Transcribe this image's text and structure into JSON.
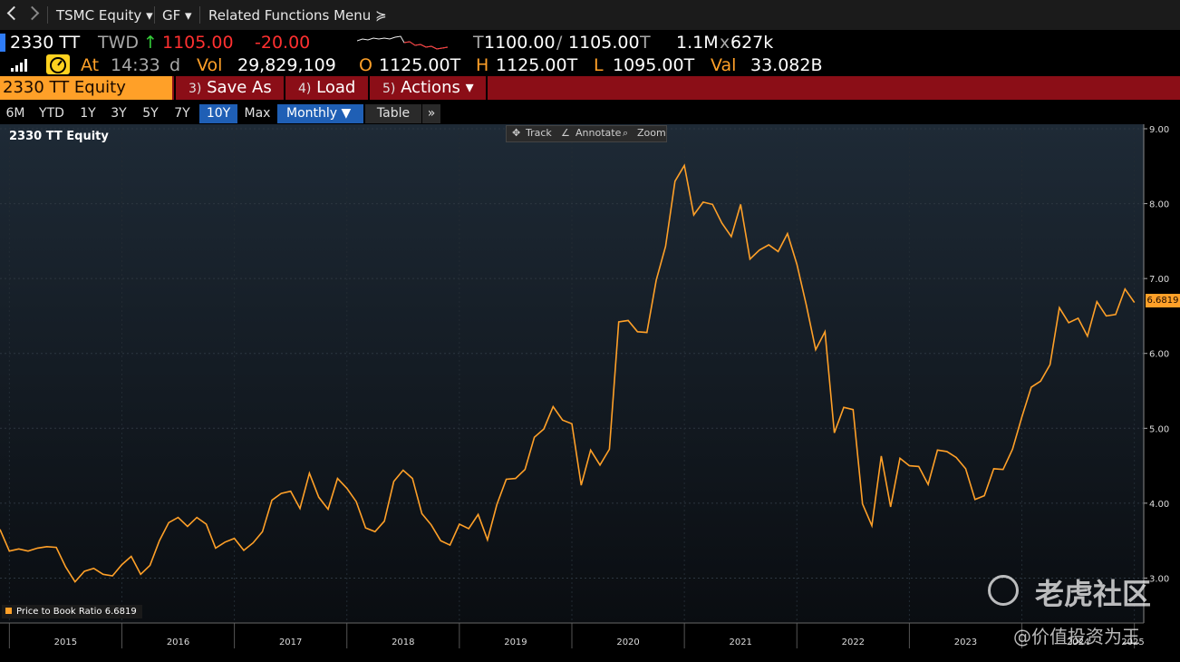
{
  "nav": {
    "back_icon": "chevron-left-icon",
    "forward_icon": "chevron-right-icon",
    "security": "TSMC Equity ▾",
    "function": "GF ▾",
    "related": "Related Functions Menu ≽"
  },
  "quote": {
    "ticker": "2330 TT",
    "currency": "TWD",
    "arrow": "↑",
    "last": "1105.00",
    "change": "-20.00",
    "bid_prefix": "T",
    "bid": "1100.00",
    "ask": "1105.00",
    "ask_suffix": "T",
    "size_bid": "1.1M",
    "size_sep": "x",
    "size_ask": "627k",
    "at_label": "At",
    "time": "14:33",
    "time_flag": "d",
    "vol_label": "Vol",
    "volume": "29,829,109",
    "open_label": "O",
    "open": "1125.00T",
    "high_label": "H",
    "high": "1125.00T",
    "low_label": "L",
    "low": "1095.00T",
    "val_label": "Val",
    "value": "33.082B"
  },
  "functions": {
    "ticker_field": "2330 TT Equity",
    "save_num": "3)",
    "save": "Save As",
    "load_num": "4)",
    "load": "Load",
    "actions_num": "5)",
    "actions": "Actions ▾"
  },
  "ranges": [
    "6M",
    "YTD",
    "1Y",
    "3Y",
    "5Y",
    "7Y",
    "10Y",
    "Max"
  ],
  "range_selected": "10Y",
  "frequency": "Monthly ▼",
  "table_label": "Table",
  "more_label": "»",
  "chart_toolbar": {
    "track": "Track",
    "annotate": "Annotate",
    "zoom": "Zoom"
  },
  "chart_title": "2330 TT Equity",
  "legend_label": "Price to Book Ratio 6.6819",
  "last_value": "6.6819",
  "watermark": {
    "brand": "老虎社区",
    "handle": "@价值投资为王"
  },
  "colors": {
    "line": "#ffa028",
    "accent": "#ffa028",
    "function_bar": "#8b0e17",
    "selected": "#1f5fb5"
  },
  "chart_data": {
    "type": "line",
    "title": "2330 TT Equity",
    "series": [
      {
        "name": "Price to Book Ratio",
        "values": [
          3.65,
          3.36,
          3.39,
          3.36,
          3.4,
          3.42,
          3.41,
          3.15,
          2.95,
          3.09,
          3.13,
          3.05,
          3.03,
          3.18,
          3.29,
          3.05,
          3.17,
          3.5,
          3.74,
          3.81,
          3.69,
          3.81,
          3.72,
          3.4,
          3.48,
          3.53,
          3.37,
          3.47,
          3.62,
          4.04,
          4.13,
          4.16,
          3.93,
          4.4,
          4.08,
          3.92,
          4.33,
          4.2,
          4.02,
          3.67,
          3.62,
          3.76,
          4.29,
          4.44,
          4.33,
          3.86,
          3.71,
          3.5,
          3.44,
          3.72,
          3.66,
          3.85,
          3.51,
          3.98,
          4.32,
          4.33,
          4.45,
          4.88,
          4.99,
          5.29,
          5.11,
          5.06,
          4.24,
          4.71,
          4.51,
          4.72,
          6.42,
          6.44,
          6.29,
          6.28,
          6.98,
          7.43,
          8.3,
          8.51,
          7.85,
          8.02,
          7.99,
          7.74,
          7.56,
          7.99,
          7.26,
          7.38,
          7.45,
          7.36,
          7.6,
          7.19,
          6.65,
          6.05,
          6.29,
          4.94,
          5.28,
          5.25,
          3.99,
          3.7,
          4.63,
          3.95,
          4.6,
          4.5,
          4.49,
          4.25,
          4.71,
          4.69,
          4.61,
          4.46,
          4.05,
          4.1,
          4.46,
          4.45,
          4.72,
          5.15,
          5.55,
          5.63,
          5.85,
          6.61,
          6.41,
          6.47,
          6.23,
          6.69,
          6.5,
          6.52,
          6.86,
          6.68
        ]
      }
    ],
    "x_start": "2014-12",
    "x_end": "2025-01",
    "x_ticks": [
      "2015",
      "2016",
      "2017",
      "2018",
      "2019",
      "2020",
      "2021",
      "2022",
      "2023",
      "2024",
      "2025"
    ],
    "y_ticks": [
      "3.00",
      "4.00",
      "5.00",
      "6.00",
      "7.00",
      "8.00",
      "9.00"
    ],
    "ylim": [
      2.4,
      9.0
    ],
    "grid": true,
    "legend_position": "bottom-left"
  }
}
